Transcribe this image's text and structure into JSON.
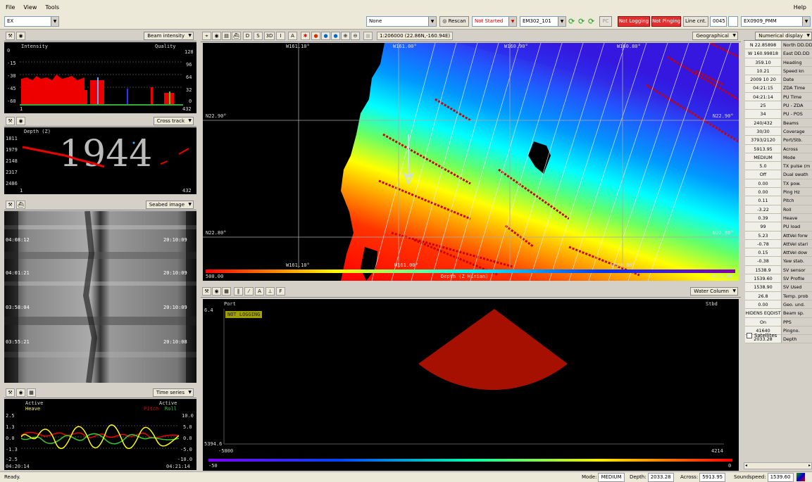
{
  "menu": {
    "file": "File",
    "view": "View",
    "tools": "Tools",
    "help": "Help"
  },
  "toolbar": {
    "project": "EX",
    "none_select": "None",
    "rescan": "Rescan",
    "status": "Not Started",
    "system": "EM302_101",
    "not_logging": "Not Logging",
    "not_pinging": "Not Pinging",
    "line_cnt_label": "Line cnt.",
    "line_cnt": "0045",
    "survey": "EX0909_PMM"
  },
  "beam_panel": {
    "dropdown": "Beam intensity",
    "left_title": "Intensity",
    "right_title": "Quality",
    "yticks": [
      "0",
      "-15",
      "-30",
      "-45",
      "-60"
    ],
    "rticks": [
      "128",
      "96",
      "64",
      "32",
      "0"
    ],
    "xmin": "1",
    "xmax": "432"
  },
  "cross_panel": {
    "dropdown": "Cross track",
    "title": "Depth (Z)",
    "big_depth": "1944",
    "yticks": [
      "1811",
      "1979",
      "2148",
      "2317",
      "2486"
    ],
    "xmin": "1",
    "xmax": "432"
  },
  "seabed_panel": {
    "dropdown": "Seabed image",
    "times_left": [
      "04:08:12",
      "04:01:21",
      "03:58:04",
      "03:55:21"
    ],
    "times_right": [
      "20:10:09",
      "20:10:09",
      "20:10:09",
      "20:10:08"
    ]
  },
  "time_panel": {
    "dropdown": "Time series",
    "active": "Active",
    "heave": "Heave",
    "pitch": "Pitch",
    "roll": "Roll",
    "lticks": [
      "2.5",
      "1.3",
      "0.0",
      "-1.3",
      "-2.5"
    ],
    "rticks": [
      "10.0",
      "5.0",
      "0.0",
      "-5.0",
      "-10.0"
    ],
    "tstart": "04:20:14",
    "tend": "04:21:14"
  },
  "map_panel": {
    "scale": "1:206000 (22.86N,-160.94E)",
    "dropdown": "Geographical",
    "btns": [
      "D",
      "S",
      "3D",
      "I"
    ],
    "lon_labels": [
      "W161.10°",
      "W161.00°",
      "W160.90°",
      "W160.80°"
    ],
    "lat_top": "N22.90°",
    "lat_bottom": "N22.80°",
    "depth_min": "500.00",
    "depth_label": "Depth (Z Hinian)",
    "depth_max": "4000.00"
  },
  "water_panel": {
    "dropdown": "Water Column",
    "port": "Port",
    "stbd": "Stbd",
    "not_logging": "NOT LOGGING",
    "ytop": "6.4",
    "ybottom": "5394.6",
    "xmin": "-5000",
    "xmax": "4214",
    "cmin": "-50",
    "cmax": "0"
  },
  "numerical": {
    "dropdown": "Numerical display",
    "satellites": "Satellites",
    "rows": [
      {
        "v": "N 22.85898",
        "l": "North DD.DD"
      },
      {
        "v": "W 160.99818",
        "l": "East DD.DD"
      },
      {
        "v": "359.10",
        "l": "Heading"
      },
      {
        "v": "10.21",
        "l": "Speed kn"
      },
      {
        "v": "2009 10 20",
        "l": "Date"
      },
      {
        "v": "04:21:15",
        "l": "ZDA Time"
      },
      {
        "v": "04:21:14",
        "l": "PU Time"
      },
      {
        "v": "25",
        "l": "PU - ZDA"
      },
      {
        "v": "34",
        "l": "PU - POS"
      },
      {
        "v": "240/432",
        "l": "Beams"
      },
      {
        "v": "30/30",
        "l": "Coverage"
      },
      {
        "v": "3793/2120",
        "l": "Port/Stb."
      },
      {
        "v": "5913.95",
        "l": "Across"
      },
      {
        "v": "MEDIUM",
        "l": "Mode"
      },
      {
        "v": "5.0",
        "l": "TX pulse (m"
      },
      {
        "v": "Off",
        "l": "Dual swath"
      },
      {
        "v": "0.00",
        "l": "TX pow."
      },
      {
        "v": "0.00",
        "l": "Ping Hz"
      },
      {
        "v": "0.11",
        "l": "Pitch"
      },
      {
        "v": "-3.22",
        "l": "Roll"
      },
      {
        "v": "0.39",
        "l": "Heave"
      },
      {
        "v": "99",
        "l": "PU load"
      },
      {
        "v": "5.23",
        "l": "AttVel forw"
      },
      {
        "v": "-0.78",
        "l": "AttVel starl"
      },
      {
        "v": "0.15",
        "l": "AttVel dow"
      },
      {
        "v": "-0.38",
        "l": "Yaw stab."
      },
      {
        "v": "1538.9",
        "l": "SV sensor"
      },
      {
        "v": "1539.60",
        "l": "SV Profile"
      },
      {
        "v": "1538.90",
        "l": "SV Used"
      },
      {
        "v": "26.8",
        "l": "Temp. prob"
      },
      {
        "v": "0.00",
        "l": "Geo. und."
      },
      {
        "v": "HIDENS EQDIST",
        "l": "Beam sp."
      },
      {
        "v": "On",
        "l": "PPS"
      },
      {
        "v": "41640",
        "l": "Pingno."
      },
      {
        "v": "2033.28",
        "l": "Depth"
      }
    ]
  },
  "status": {
    "ready": "Ready.",
    "mode_label": "Mode:",
    "mode": "MEDIUM",
    "depth_label": "Depth:",
    "depth": "2033.28",
    "across_label": "Across:",
    "across": "5913.95",
    "sound_label": "Soundspeed:",
    "sound": "1539.60"
  }
}
